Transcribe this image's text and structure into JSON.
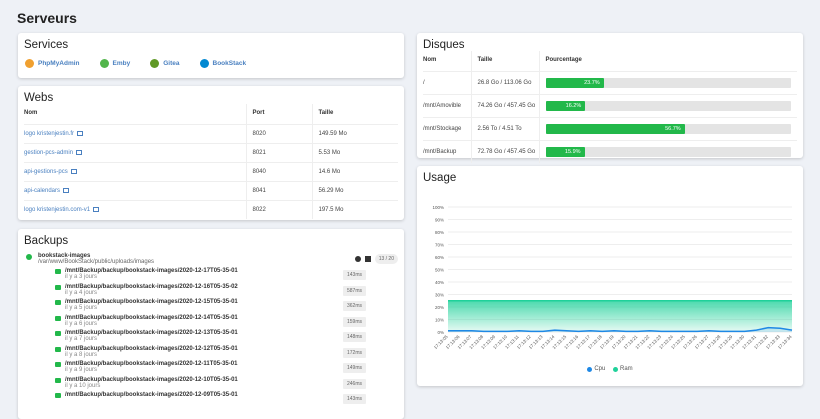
{
  "page_title": "Serveurs",
  "services": {
    "title": "Services",
    "items": [
      {
        "label": "PhpMyAdmin",
        "icon": "phpmyadmin-icon",
        "color": "#f0a030"
      },
      {
        "label": "Emby",
        "icon": "emby-icon",
        "color": "#52b54b"
      },
      {
        "label": "Gitea",
        "icon": "gitea-icon",
        "color": "#609926"
      },
      {
        "label": "BookStack",
        "icon": "bookstack-icon",
        "color": "#0288d1"
      }
    ]
  },
  "webs": {
    "title": "Webs",
    "headers": [
      "Nom",
      "Port",
      "Taille"
    ],
    "rows": [
      {
        "name": "logo kristenjestin.fr",
        "port": "8020",
        "size": "149.59 Mo"
      },
      {
        "name": "gestion-pcs-admin",
        "port": "8021",
        "size": "5.53 Mo"
      },
      {
        "name": "api-gestions-pcs",
        "port": "8040",
        "size": "14.6 Mo"
      },
      {
        "name": "api-calendars",
        "port": "8041",
        "size": "56.29 Mo"
      },
      {
        "name": "logo kristenjestin.com-v1",
        "port": "8022",
        "size": "197.5 Mo"
      }
    ]
  },
  "backups": {
    "title": "Backups",
    "name": "bookstack-images",
    "path": "/var/www/BookStack/public/uploads/images",
    "count": "13 / 20",
    "items": [
      {
        "path": "/mnt/Backup/backup/bookstack-images/2020-12-17T05-35-01",
        "ago": "il y a 3 jours",
        "duration": "143ms"
      },
      {
        "path": "/mnt/Backup/backup/bookstack-images/2020-12-16T05-35-02",
        "ago": "il y a 4 jours",
        "duration": "587ms"
      },
      {
        "path": "/mnt/Backup/backup/bookstack-images/2020-12-15T05-35-01",
        "ago": "il y a 5 jours",
        "duration": "362ms"
      },
      {
        "path": "/mnt/Backup/backup/bookstack-images/2020-12-14T05-35-01",
        "ago": "il y a 6 jours",
        "duration": "159ms"
      },
      {
        "path": "/mnt/Backup/backup/bookstack-images/2020-12-13T05-35-01",
        "ago": "il y a 7 jours",
        "duration": "148ms"
      },
      {
        "path": "/mnt/Backup/backup/bookstack-images/2020-12-12T05-35-01",
        "ago": "il y a 8 jours",
        "duration": "172ms"
      },
      {
        "path": "/mnt/Backup/backup/bookstack-images/2020-12-11T05-35-01",
        "ago": "il y a 9 jours",
        "duration": "149ms"
      },
      {
        "path": "/mnt/Backup/backup/bookstack-images/2020-12-10T05-35-01",
        "ago": "il y a 10 jours",
        "duration": "246ms"
      },
      {
        "path": "/mnt/Backup/backup/bookstack-images/2020-12-09T05-35-01",
        "ago": "",
        "duration": "143ms"
      }
    ]
  },
  "disques": {
    "title": "Disques",
    "headers": [
      "Nom",
      "Taille",
      "Pourcentage"
    ],
    "rows": [
      {
        "name": "/",
        "size": "26.8 Go / 113.06 Go",
        "percent": 23.7,
        "label": "23.7%"
      },
      {
        "name": "/mnt/Amovible",
        "size": "74.26 Go / 457.45 Go",
        "percent": 16.2,
        "label": "16.2%"
      },
      {
        "name": "/mnt/Stockage",
        "size": "2.56 To / 4.51 To",
        "percent": 56.7,
        "label": "56.7%"
      },
      {
        "name": "/mnt/Backup",
        "size": "72.78 Go / 457.45 Go",
        "percent": 15.9,
        "label": "15.9%"
      }
    ]
  },
  "usage": {
    "title": "Usage"
  },
  "chart_data": {
    "type": "area",
    "ylim": [
      0,
      100
    ],
    "y_ticks": [
      "100%",
      "90%",
      "80%",
      "70%",
      "60%",
      "50%",
      "40%",
      "30%",
      "20%",
      "10%",
      "0%"
    ],
    "x": [
      "17:13:05",
      "17:13:06",
      "17:13:07",
      "17:13:08",
      "17:13:09",
      "17:13:10",
      "17:13:11",
      "17:13:12",
      "17:13:13",
      "17:13:14",
      "17:13:15",
      "17:13:16",
      "17:13:17",
      "17:13:18",
      "17:13:19",
      "17:13:20",
      "17:13:21",
      "17:13:22",
      "17:13:23",
      "17:13:24",
      "17:13:25",
      "17:13:26",
      "17:13:27",
      "17:13:28",
      "17:13:29",
      "17:13:30",
      "17:13:31",
      "17:13:32",
      "17:13:33",
      "17:13:34"
    ],
    "series": [
      {
        "name": "Cpu",
        "color": "#1e88e5",
        "values": [
          1,
          1,
          1,
          0.5,
          0.5,
          0.5,
          1,
          0.5,
          0.5,
          1.5,
          1,
          0.5,
          1,
          0.5,
          1,
          0.5,
          0.5,
          1,
          0.5,
          0.5,
          0.5,
          0.5,
          1,
          0.5,
          0.5,
          0.5,
          1.5,
          3.5,
          3,
          1.5
        ]
      },
      {
        "name": "Ram",
        "color": "#1fd19a",
        "values": [
          25,
          25,
          25,
          25,
          25,
          25,
          25,
          25,
          25,
          25,
          25,
          25,
          25,
          25,
          25,
          25,
          25,
          25,
          25,
          25,
          25,
          25,
          25,
          25,
          25,
          25,
          25,
          25,
          25,
          25
        ]
      }
    ],
    "legend": "bottom",
    "grid": true
  }
}
